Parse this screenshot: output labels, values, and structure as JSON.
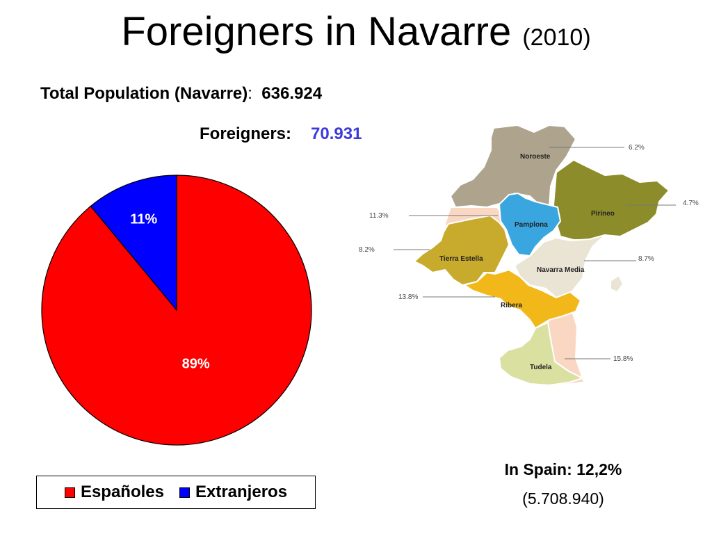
{
  "title": {
    "main": "Foreigners in Navarre",
    "year": "(2010)"
  },
  "stats": {
    "total_label": "Total Population (Navarre)",
    "total_colon": ":",
    "total_value": "636.924",
    "foreigners_label": "Foreigners:",
    "foreigners_value": "70.931"
  },
  "colors": {
    "espanoles": "#ff0000",
    "extranjeros": "#0000ff",
    "foreigners_value": "#3b3bdc",
    "noroeste": "#aea38c",
    "pirineo": "#8c8c2a",
    "pamplona": "#3aa6df",
    "tierra_estella": "#c8aa2c",
    "navarra_media": "#e9e4d4",
    "ribera": "#f2b81a",
    "tudela": "#d9e0a0",
    "border_zone": "#f9d7c3"
  },
  "chart_data": [
    {
      "type": "pie",
      "title": "",
      "slices": [
        {
          "name": "Españoles",
          "value": 89,
          "label": "89%"
        },
        {
          "name": "Extranjeros",
          "value": 11,
          "label": "11%"
        }
      ],
      "legend": {
        "placement": "bottom",
        "entries": [
          "Españoles",
          "Extranjeros"
        ]
      }
    },
    {
      "type": "map",
      "title": "",
      "regions": [
        {
          "name": "Noroeste",
          "value": 6.2,
          "label": "6.2%"
        },
        {
          "name": "Pirineo",
          "value": 4.7,
          "label": "4.7%"
        },
        {
          "name": "Pamplona",
          "value": 11.3,
          "label": "11.3%"
        },
        {
          "name": "Tierra Estella",
          "value": 8.2,
          "label": "8.2%"
        },
        {
          "name": "Navarra Media",
          "value": 8.7,
          "label": "8.7%"
        },
        {
          "name": "Ribera",
          "value": 13.8,
          "label": "13.8%"
        },
        {
          "name": "Tudela",
          "value": 15.8,
          "label": "15.8%"
        }
      ]
    }
  ],
  "spain": {
    "line1": "In Spain: 12,2%",
    "line2": "(5.708.940)"
  }
}
